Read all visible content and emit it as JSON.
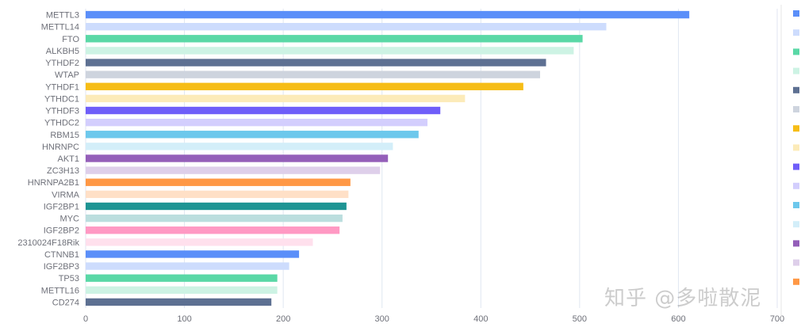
{
  "chart_data": {
    "type": "bar",
    "orientation": "horizontal",
    "title": "",
    "xlabel": "",
    "ylabel": "",
    "xlim": [
      0,
      700
    ],
    "x_ticks": [
      "0",
      "100",
      "200",
      "300",
      "400",
      "500",
      "600",
      "700"
    ],
    "grid": true,
    "legend_position": "right",
    "categories": [
      "METTL3",
      "METTL14",
      "FTO",
      "ALKBH5",
      "YTHDF2",
      "WTAP",
      "YTHDF1",
      "YTHDC1",
      "YTHDF3",
      "YTHDC2",
      "RBM15",
      "HNRNPC",
      "AKT1",
      "ZC3H13",
      "HNRNPA2B1",
      "VIRMA",
      "IGF2BP1",
      "MYC",
      "IGF2BP2",
      "2310024F18Rik",
      "CTNNB1",
      "IGF2BP3",
      "TP53",
      "METTL16",
      "CD274"
    ],
    "values": [
      611,
      527,
      503,
      494,
      466,
      460,
      443,
      384,
      359,
      346,
      337,
      311,
      306,
      298,
      268,
      266,
      264,
      260,
      257,
      230,
      216,
      206,
      194,
      194,
      188
    ],
    "colors": [
      "#5b8ff9",
      "#cddcfd",
      "#5ad8a6",
      "#cdf3e4",
      "#5d7092",
      "#ced4de",
      "#f6bd16",
      "#fcebb9",
      "#6f5ef9",
      "#d3cefd",
      "#6dc8ec",
      "#d3eef9",
      "#945fb9",
      "#decfea",
      "#ff9845",
      "#ffe0c7",
      "#1e9493",
      "#bbdede",
      "#ff99c3",
      "#ffe0ed",
      "#5b8ff9",
      "#cddcfd",
      "#5ad8a6",
      "#cdf3e4",
      "#5d7092"
    ]
  },
  "watermark": "知乎 @多啦散泥"
}
